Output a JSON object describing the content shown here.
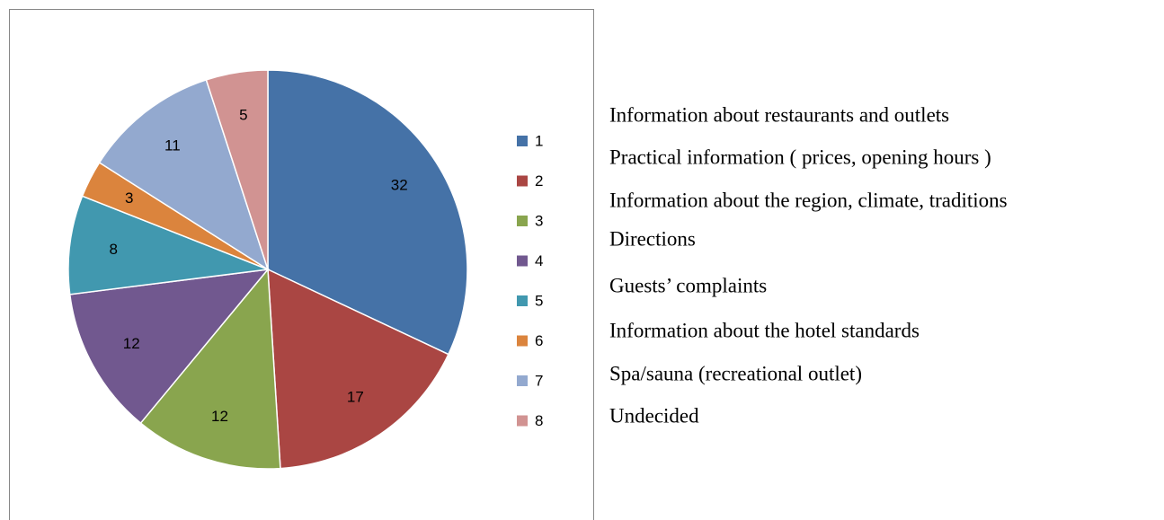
{
  "chart_data": {
    "type": "pie",
    "categories": [
      "1",
      "2",
      "3",
      "4",
      "5",
      "6",
      "7",
      "8"
    ],
    "values": [
      32,
      17,
      12,
      12,
      8,
      3,
      11,
      5
    ],
    "colors": [
      "#4572a7",
      "#aa4643",
      "#89a54e",
      "#71588f",
      "#4198af",
      "#db843d",
      "#93a9cf",
      "#d19392"
    ],
    "legend": "right"
  },
  "descriptions": [
    "Information about restaurants and outlets",
    "Practical information ( prices, opening hours )",
    "Information about the region, climate, traditions",
    "Directions",
    "Guests’ complaints",
    "Information about the hotel standards",
    "Spa/sauna (recreational outlet)",
    "Undecided"
  ]
}
